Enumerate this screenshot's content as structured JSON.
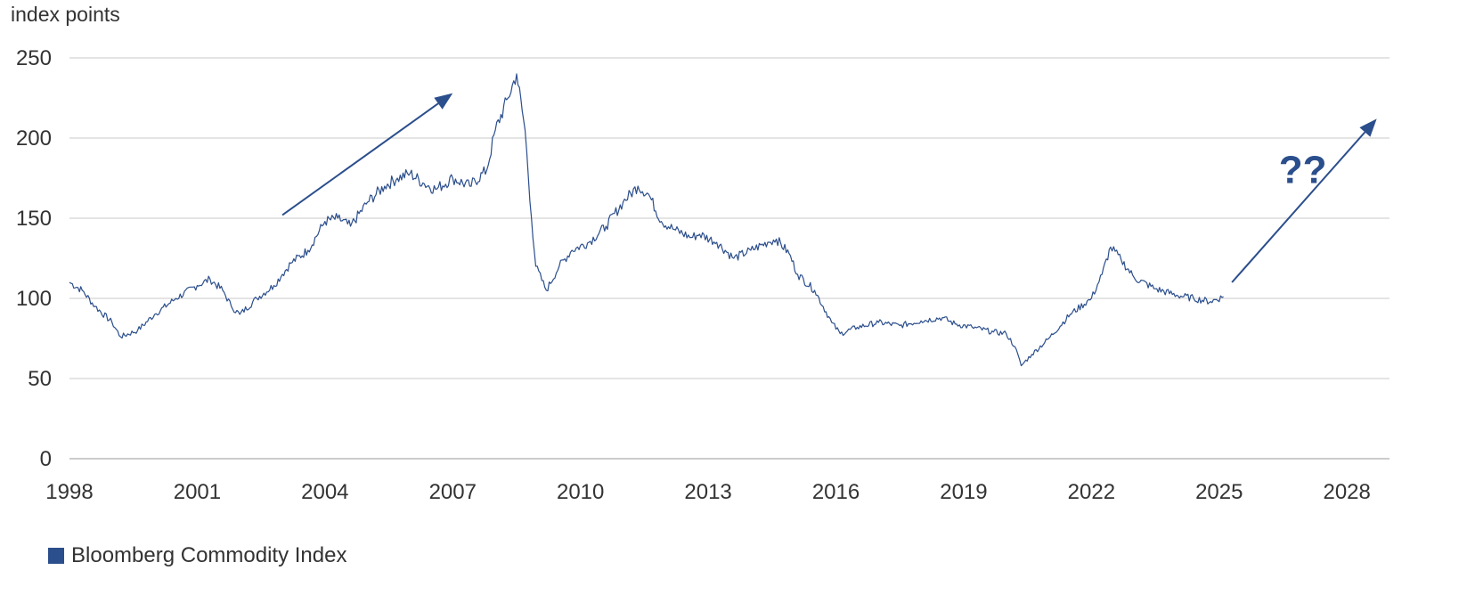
{
  "chart_data": {
    "type": "line",
    "ylabel": "index points",
    "xlim": [
      1998,
      2029
    ],
    "ylim": [
      0,
      250
    ],
    "y_ticks": [
      0,
      50,
      100,
      150,
      200,
      250
    ],
    "x_ticks": [
      1998,
      2001,
      2004,
      2007,
      2010,
      2013,
      2016,
      2019,
      2022,
      2025,
      2028
    ],
    "grid": "horizontal",
    "legend_position": "bottom-left",
    "colors": {
      "series": "#2b4e8c",
      "grid": "#c8c8c8",
      "axis": "#999999",
      "text": "#333333"
    },
    "series": [
      {
        "name": "Bloomberg Commodity Index",
        "x": [
          1998.0,
          1998.3,
          1998.6,
          1999.0,
          1999.2,
          1999.6,
          2000.0,
          2000.5,
          2001.0,
          2001.3,
          2001.6,
          2001.8,
          2002.0,
          2002.4,
          2002.8,
          2003.0,
          2003.2,
          2003.6,
          2004.0,
          2004.3,
          2004.6,
          2005.0,
          2005.4,
          2005.7,
          2006.0,
          2006.3,
          2006.6,
          2007.0,
          2007.4,
          2007.8,
          2008.0,
          2008.3,
          2008.5,
          2008.7,
          2008.85,
          2008.95,
          2009.2,
          2009.5,
          2009.8,
          2010.2,
          2010.6,
          2011.0,
          2011.35,
          2011.6,
          2011.9,
          2012.2,
          2012.6,
          2012.8,
          2013.2,
          2013.6,
          2014.0,
          2014.4,
          2014.6,
          2014.9,
          2015.1,
          2015.5,
          2015.9,
          2016.1,
          2016.5,
          2017.0,
          2017.5,
          2018.0,
          2018.5,
          2018.8,
          2019.2,
          2019.7,
          2020.0,
          2020.2,
          2020.35,
          2020.6,
          2021.0,
          2021.5,
          2022.0,
          2022.25,
          2022.45,
          2022.7,
          2023.0,
          2023.5,
          2024.0,
          2024.4,
          2024.8,
          2025.1
        ],
        "values": [
          110,
          105,
          95,
          85,
          76,
          80,
          90,
          100,
          108,
          112,
          105,
          95,
          90,
          100,
          108,
          115,
          122,
          130,
          148,
          150,
          145,
          160,
          170,
          175,
          178,
          172,
          168,
          175,
          170,
          180,
          205,
          225,
          240,
          205,
          150,
          120,
          105,
          120,
          130,
          135,
          145,
          160,
          170,
          165,
          148,
          143,
          138,
          140,
          135,
          125,
          130,
          135,
          137,
          128,
          115,
          105,
          85,
          78,
          82,
          85,
          83,
          86,
          88,
          84,
          82,
          79,
          78,
          70,
          58,
          65,
          75,
          90,
          100,
          115,
          132,
          124,
          113,
          106,
          102,
          100,
          98,
          101
        ]
      }
    ],
    "annotations": [
      {
        "type": "arrow",
        "from": [
          2003.0,
          152
        ],
        "to": [
          2007.0,
          228
        ]
      },
      {
        "type": "arrow",
        "from": [
          2025.3,
          110
        ],
        "to": [
          2028.7,
          212
        ]
      },
      {
        "type": "text",
        "text": "??",
        "x": 2026.4,
        "y": 172
      }
    ]
  }
}
